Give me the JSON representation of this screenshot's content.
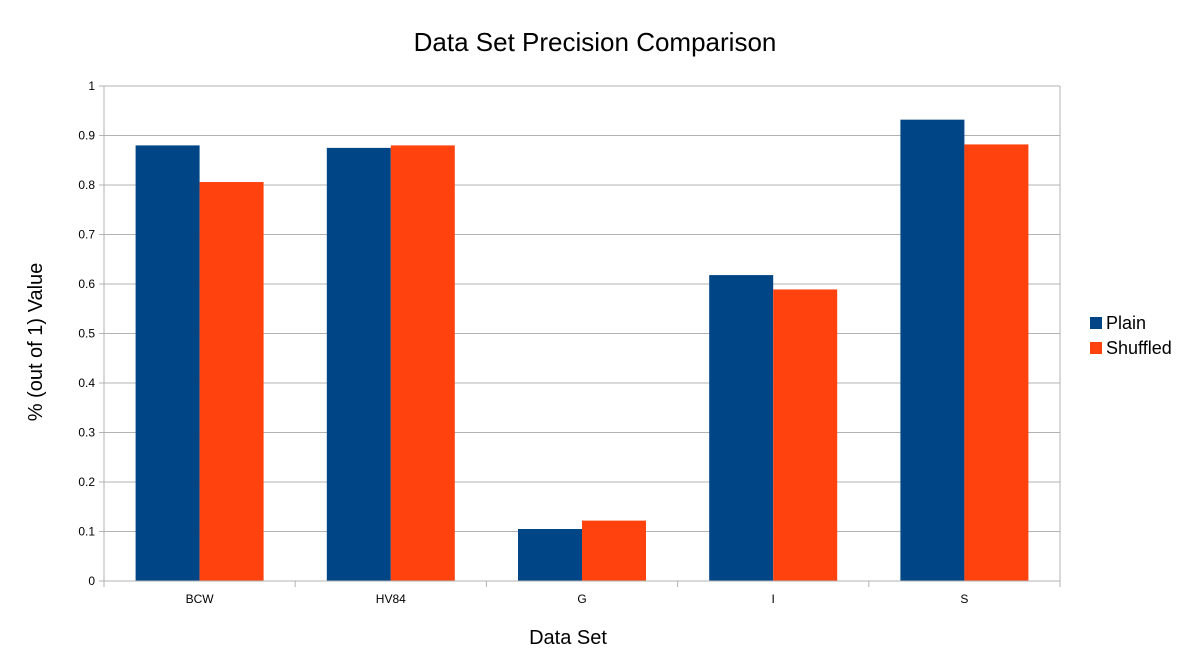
{
  "chart_data": {
    "type": "bar",
    "title": "Data Set Precision Comparison",
    "xlabel": "Data Set",
    "ylabel": "% (out of 1) Value",
    "categories": [
      "BCW",
      "HV84",
      "G",
      "I",
      "S"
    ],
    "series": [
      {
        "name": "Plain",
        "color": "#004586",
        "values": [
          0.88,
          0.875,
          0.105,
          0.618,
          0.932
        ]
      },
      {
        "name": "Shuffled",
        "color": "#ff420e",
        "values": [
          0.806,
          0.88,
          0.122,
          0.589,
          0.882
        ]
      }
    ],
    "ylim": [
      0,
      1
    ],
    "yticks": [
      "0",
      "0.1",
      "0.2",
      "0.3",
      "0.4",
      "0.5",
      "0.6",
      "0.7",
      "0.8",
      "0.9",
      "1"
    ],
    "grid": true,
    "legend": "right"
  }
}
